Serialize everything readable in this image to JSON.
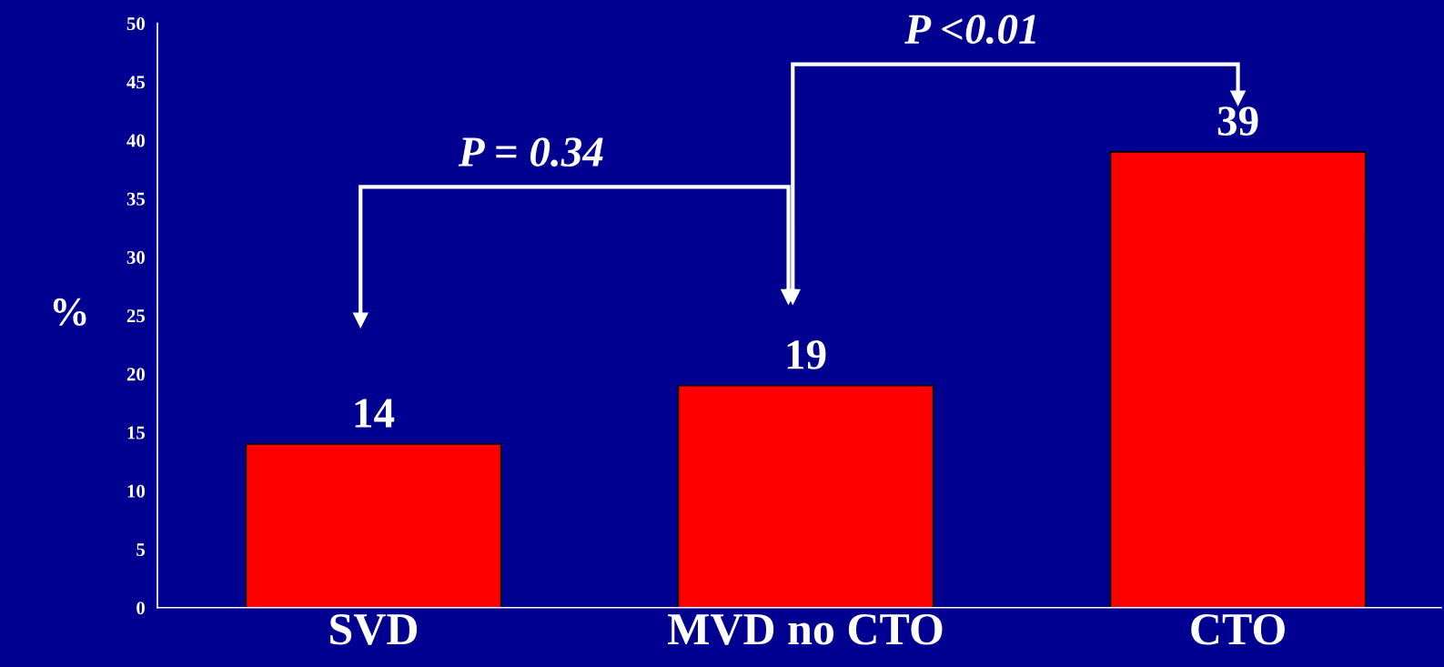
{
  "chart_data": {
    "type": "bar",
    "categories": [
      "SVD",
      "MVD no CTO",
      "CTO"
    ],
    "values": [
      14,
      19,
      39
    ],
    "color": "#ff0000",
    "ylabel": "%",
    "ylim": [
      0,
      50
    ],
    "yticks": [
      0,
      5,
      10,
      15,
      20,
      25,
      30,
      35,
      40,
      45,
      50
    ],
    "data_labels": true,
    "grid": false,
    "annotations": [
      "P = 0.34",
      "P <0.01"
    ]
  }
}
